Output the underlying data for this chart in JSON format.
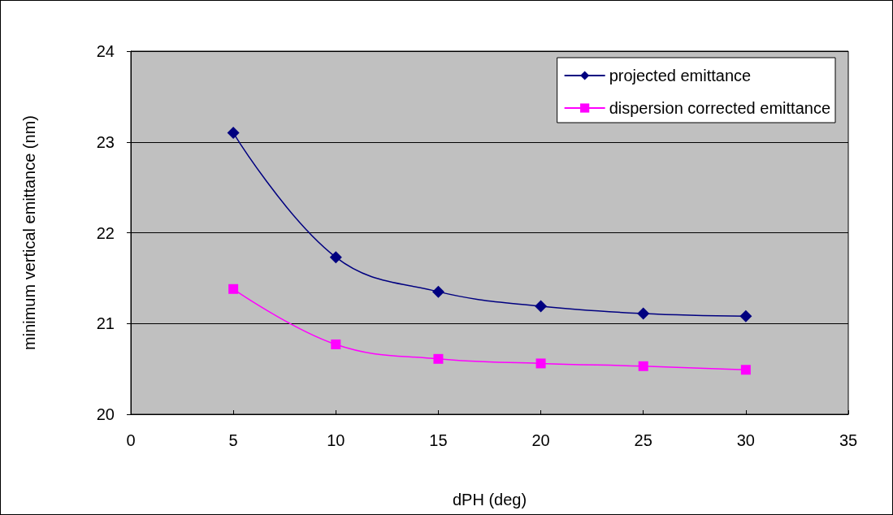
{
  "chart_data": {
    "type": "line",
    "xlabel": "dPH (deg)",
    "ylabel": "minimum vertical emittance (nm)",
    "x": [
      5,
      10,
      15,
      20,
      25,
      30
    ],
    "series": [
      {
        "name": "projected emittance",
        "color": "#000080",
        "marker": "diamond",
        "values": [
          23.1,
          21.73,
          21.35,
          21.19,
          21.11,
          21.08
        ]
      },
      {
        "name": "dispersion corrected emittance",
        "color": "#ff00ff",
        "marker": "square",
        "values": [
          21.38,
          20.77,
          20.61,
          20.56,
          20.53,
          20.49
        ]
      }
    ],
    "xlim": [
      0,
      35
    ],
    "xticks": [
      0,
      5,
      10,
      15,
      20,
      25,
      30,
      35
    ],
    "ylim": [
      20,
      24
    ],
    "yticks": [
      20,
      21,
      22,
      23,
      24
    ],
    "grid": "y",
    "legend": "top right",
    "line_style": "solid"
  }
}
